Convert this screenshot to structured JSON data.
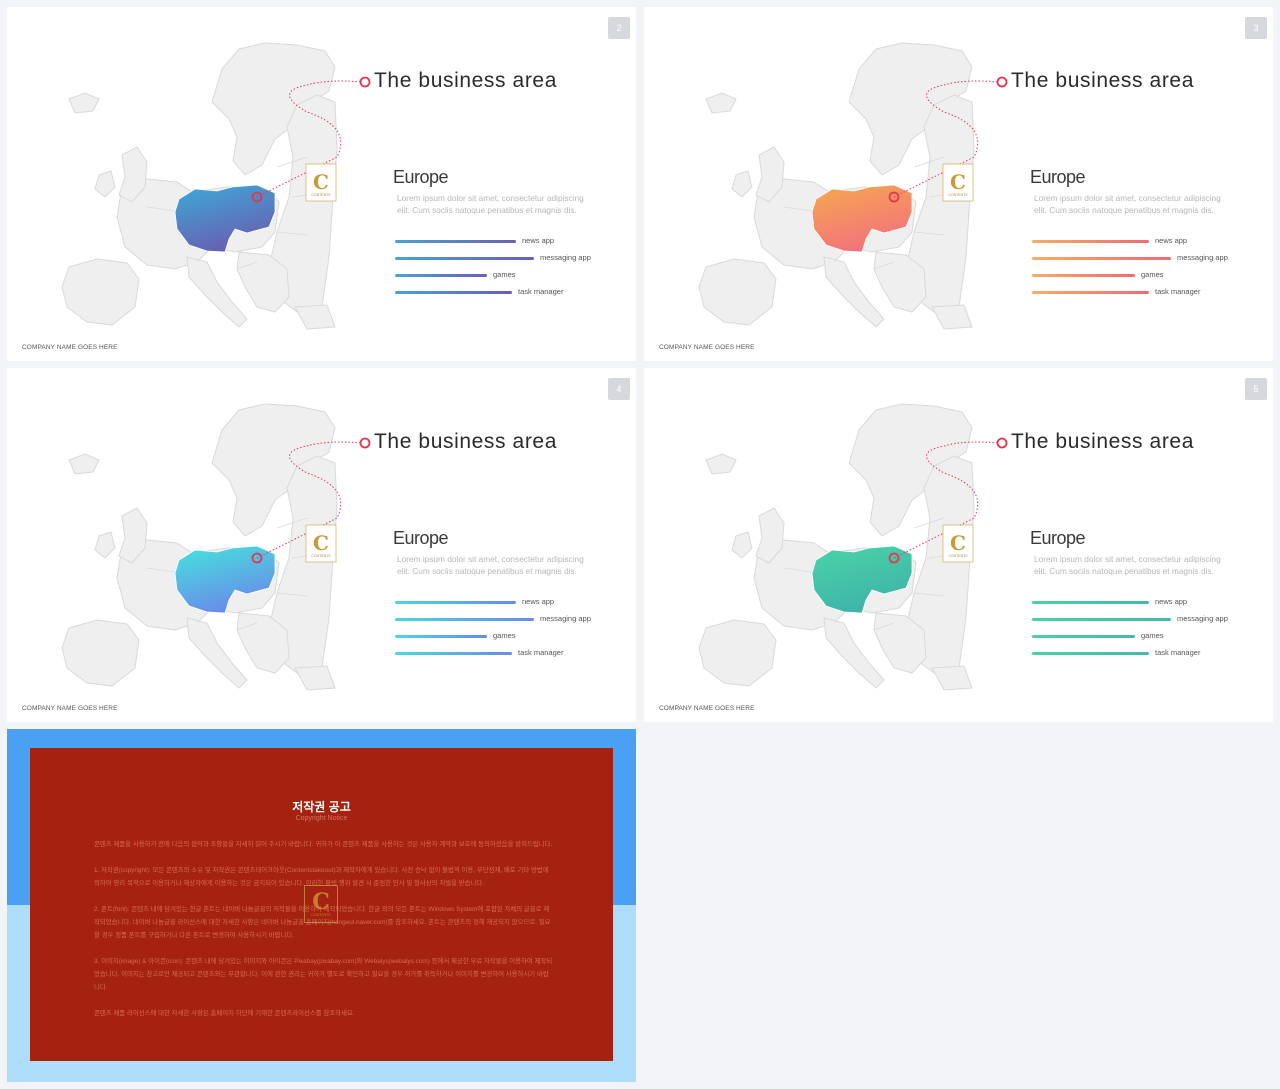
{
  "slides": [
    {
      "page": "2",
      "title": "The business area",
      "region": "Europe",
      "description": "Lorem ipsum dolor sit amet, consectetur adipiscing elit. Cum sociis natoque penatibus et magnis dis.",
      "gradient": [
        "#3fa6d6",
        "#6a5cb0"
      ],
      "bar_colors": [
        "#4aa3d4",
        "#6a5fb3"
      ],
      "bars": [
        {
          "label": "news app",
          "value": 0.55
        },
        {
          "label": "messaging app",
          "value": 0.63
        },
        {
          "label": "games",
          "value": 0.42
        },
        {
          "label": "task manager",
          "value": 0.53
        }
      ],
      "footer": "COMPANY NAME GOES HERE"
    },
    {
      "page": "3",
      "title": "The business area",
      "region": "Europe",
      "description": "Lorem ipsum dolor sit amet, consectetur adipiscing elit. Cum sociis natoque penatibus et magnis dis.",
      "gradient": [
        "#f6a552",
        "#f2707e"
      ],
      "bar_colors": [
        "#f5ae68",
        "#ef6a74"
      ],
      "bars": [
        {
          "label": "news app",
          "value": 0.53
        },
        {
          "label": "messaging app",
          "value": 0.63
        },
        {
          "label": "games",
          "value": 0.47
        },
        {
          "label": "task manager",
          "value": 0.53
        }
      ],
      "footer": "COMPANY NAME GOES HERE"
    },
    {
      "page": "4",
      "title": "The business area",
      "region": "Europe",
      "description": "Lorem ipsum dolor sit amet, consectetur adipiscing elit. Cum sociis natoque penatibus et magnis dis.",
      "gradient": [
        "#46e0dd",
        "#6b86ea"
      ],
      "bar_colors": [
        "#4bd8df",
        "#6a8ae6"
      ],
      "bars": [
        {
          "label": "news app",
          "value": 0.55
        },
        {
          "label": "messaging app",
          "value": 0.63
        },
        {
          "label": "games",
          "value": 0.42
        },
        {
          "label": "task manager",
          "value": 0.53
        }
      ],
      "footer": "COMPANY NAME GOES HERE"
    },
    {
      "page": "5",
      "title": "The business area",
      "region": "Europe",
      "description": "Lorem ipsum dolor sit amet, consectetur adipiscing elit. Cum sociis natoque penatibus et magnis dis.",
      "gradient": [
        "#49d2a7",
        "#3fb2aa"
      ],
      "bar_colors": [
        "#4bd1a6",
        "#45b8ab"
      ],
      "bars": [
        {
          "label": "news app",
          "value": 0.53
        },
        {
          "label": "messaging app",
          "value": 0.63
        },
        {
          "label": "games",
          "value": 0.47
        },
        {
          "label": "task manager",
          "value": 0.53
        }
      ],
      "footer": "COMPANY NAME GOES HERE"
    }
  ],
  "logo": {
    "letter": "C",
    "text": "CONTENTS"
  },
  "copyright": {
    "title": "저작권 공고",
    "subtitle": "Copyright Notice",
    "paragraphs": [
      "콘텐츠 제품을 사용하기 전에 다음의 협약과 조항들을 자세히 읽어 주시기 바랍니다. 귀하가 이 콘텐츠 제품을 사용하는 것은 사용자 계약과 보호에 동의하셨음을 밝혀드립니다.",
      "1. 저작권(copyright): 모든 콘텐츠의 소유 및 저작권은 콘텐츠테이크아웃(Contentstakeout)과 제작자에게 있습니다. 사전 승낙 없이 불법적 이용, 무단전재, 배포 기타 방법에 의하여 영리 목적으로 이용하거나 재상자에게 이용하는 것은 금지되어 있습니다. 이러한 불법 행위 발견 시 준엄한 민사 및 형사상의 처벌을 받습니다.",
      "2. 폰트(font): 콘텐츠 내에 담겨있는 한글 폰트는 네이버 나눔글꼴의 저작물을 이용하여 제작되었습니다. 한글 외의 모든 폰트는 Windows System에 포함된 자체의 글꼴로 제작되었습니다. 네이버 나눔글꼴 라이선스에 대한 자세한 사항은 네이버 나눔글꼴 홈페이지(hangeul.naver.com)를 참조하세요. 폰트는 콘텐츠의 정해 재공되지 않으므로, 필요할 경우 정품 폰트를 구입하거나 다른 폰트로 변경하여 사용하시기 바랍니다.",
      "3. 이미지(image) & 아이콘(icon): 콘텐츠 내에 담겨있는 이미지와 아이콘은 Pixabay(pixabay.com)와 Webalys(webalys.com) 등에서 제공한 무료 자작물을 이용하여 제작되었습니다. 이미지는 참고로만 제공되고 콘텐츠와는 무관합니다. 이에 관한 권리는 귀하가 별도로 확인하고 필요할 경우 허가를 취득하거나 이미지를 변경하여 사용하시기 바랍니다.",
      "콘텐츠 제품 라이선스에 대한 자세한 사항은 홈페이지 하단에 기재한 콘텐츠라이선스를 참조하세요."
    ]
  }
}
